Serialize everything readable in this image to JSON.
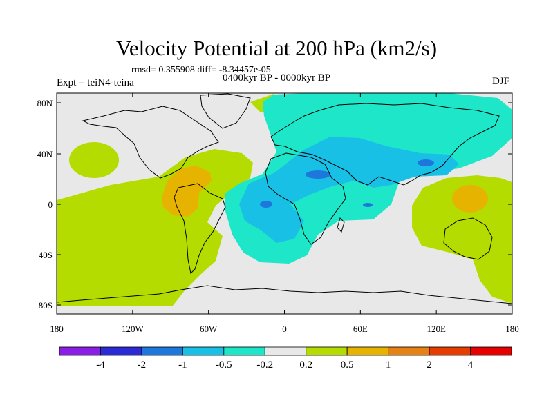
{
  "header": {
    "title": "Velocity Potential at 200 hPa (km2/s)",
    "stats": "rmsd= 0.355908 diff= -8.34457e-05",
    "experiment": "Expt = teiN4-teina",
    "period": "0400kyr BP - 0000kyr BP",
    "season": "DJF"
  },
  "axes": {
    "lat_labels": [
      "80N",
      "40N",
      "0",
      "40S",
      "80S"
    ],
    "lon_labels": [
      "180",
      "120W",
      "60W",
      "0",
      "60E",
      "120E",
      "180"
    ]
  },
  "colorbar": {
    "labels": [
      "-4",
      "-2",
      "-1",
      "-0.5",
      "-0.2",
      "0.2",
      "0.5",
      "1",
      "2",
      "4"
    ],
    "colors": [
      "#8a1ee6",
      "#2a2ad6",
      "#1e78dc",
      "#18c0e6",
      "#1ee6c8",
      "#e8e8e8",
      "#b4dc00",
      "#e6b400",
      "#e68214",
      "#e63c00",
      "#e60000"
    ]
  }
}
